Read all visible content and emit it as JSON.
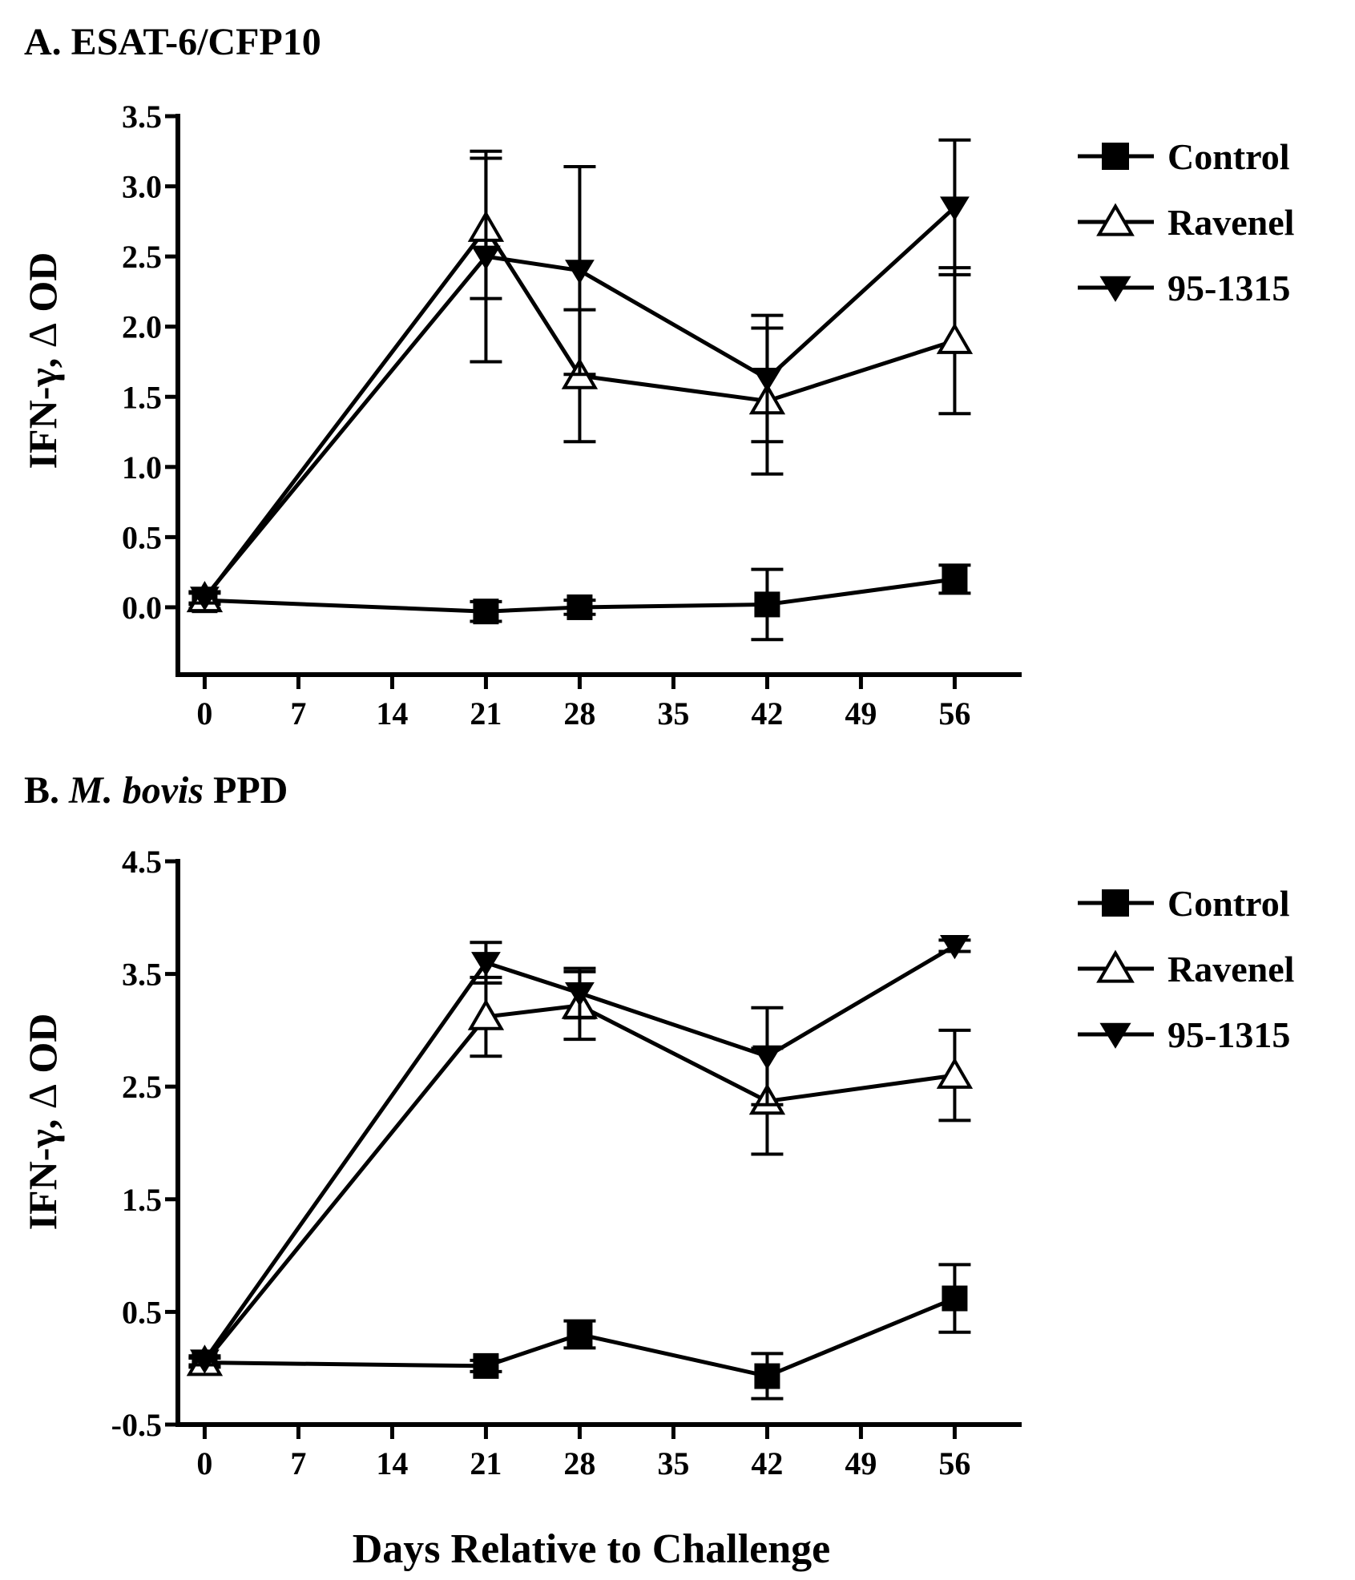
{
  "colors": {
    "ink": "#000000",
    "open_marker_fill": "#ffffff",
    "background": "#ffffff"
  },
  "shared_xlabel": "Days Relative to Challenge",
  "chart_data": [
    {
      "type": "line",
      "panel": "A",
      "title_prefix": "A. ",
      "title_main": "ESAT-6/CFP10",
      "title_italic": "",
      "title_suffix": "",
      "ylabel_main": "IFN-γ, ",
      "ylabel_delta": "Δ",
      "ylabel_tail": " OD",
      "xlabel": "",
      "xlim": [
        -2,
        61
      ],
      "ylim": [
        -0.48,
        3.5
      ],
      "xticks": [
        0,
        7,
        14,
        21,
        28,
        35,
        42,
        49,
        56
      ],
      "yticks": [
        0.0,
        0.5,
        1.0,
        1.5,
        2.0,
        2.5,
        3.0,
        3.5
      ],
      "ytick_labels": [
        "0.0",
        "0.5",
        "1.0",
        "1.5",
        "2.0",
        "2.5",
        "3.0",
        "3.5"
      ],
      "legend_position": "right",
      "x": [
        0,
        21,
        28,
        42,
        56
      ],
      "series": [
        {
          "name": "Control",
          "marker": "square-filled",
          "values": [
            0.05,
            -0.03,
            0.0,
            0.02,
            0.2
          ],
          "err": [
            0.06,
            0.07,
            0.05,
            0.25,
            0.1
          ]
        },
        {
          "name": "Ravenel",
          "marker": "triangle-up-open",
          "values": [
            0.06,
            2.7,
            1.65,
            1.47,
            1.9
          ],
          "err": [
            0.04,
            0.5,
            0.47,
            0.52,
            0.52
          ]
        },
        {
          "name": "95-1315",
          "marker": "triangle-down-filled",
          "values": [
            0.07,
            2.5,
            2.4,
            1.63,
            2.85
          ],
          "err": [
            0.04,
            0.75,
            0.74,
            0.45,
            0.48
          ]
        }
      ]
    },
    {
      "type": "line",
      "panel": "B",
      "title_prefix": "B. ",
      "title_main": "",
      "title_italic": "M. bovis",
      "title_suffix": " PPD",
      "ylabel_main": "IFN-γ, ",
      "ylabel_delta": "Δ",
      "ylabel_tail": " OD",
      "xlabel": "Days Relative to Challenge",
      "xlim": [
        -2,
        61
      ],
      "ylim": [
        -0.5,
        4.5
      ],
      "xticks": [
        0,
        7,
        14,
        21,
        28,
        35,
        42,
        49,
        56
      ],
      "yticks": [
        -0.5,
        0.5,
        1.5,
        2.5,
        3.5,
        4.5
      ],
      "ytick_labels": [
        "-0.5",
        "0.5",
        "1.5",
        "2.5",
        "3.5",
        "4.5"
      ],
      "legend_position": "right",
      "x": [
        0,
        21,
        28,
        42,
        56
      ],
      "series": [
        {
          "name": "Control",
          "marker": "square-filled",
          "values": [
            0.05,
            0.02,
            0.3,
            -0.07,
            0.62
          ],
          "err": [
            0.04,
            0.05,
            0.12,
            0.2,
            0.3
          ]
        },
        {
          "name": "Ravenel",
          "marker": "triangle-up-open",
          "values": [
            0.05,
            3.12,
            3.22,
            2.37,
            2.6
          ],
          "err": [
            0.04,
            0.35,
            0.3,
            0.47,
            0.4
          ]
        },
        {
          "name": "95-1315",
          "marker": "triangle-down-filled",
          "values": [
            0.07,
            3.6,
            3.33,
            2.77,
            3.75
          ],
          "err": [
            0.04,
            0.18,
            0.22,
            0.43,
            0.05
          ]
        }
      ]
    }
  ]
}
